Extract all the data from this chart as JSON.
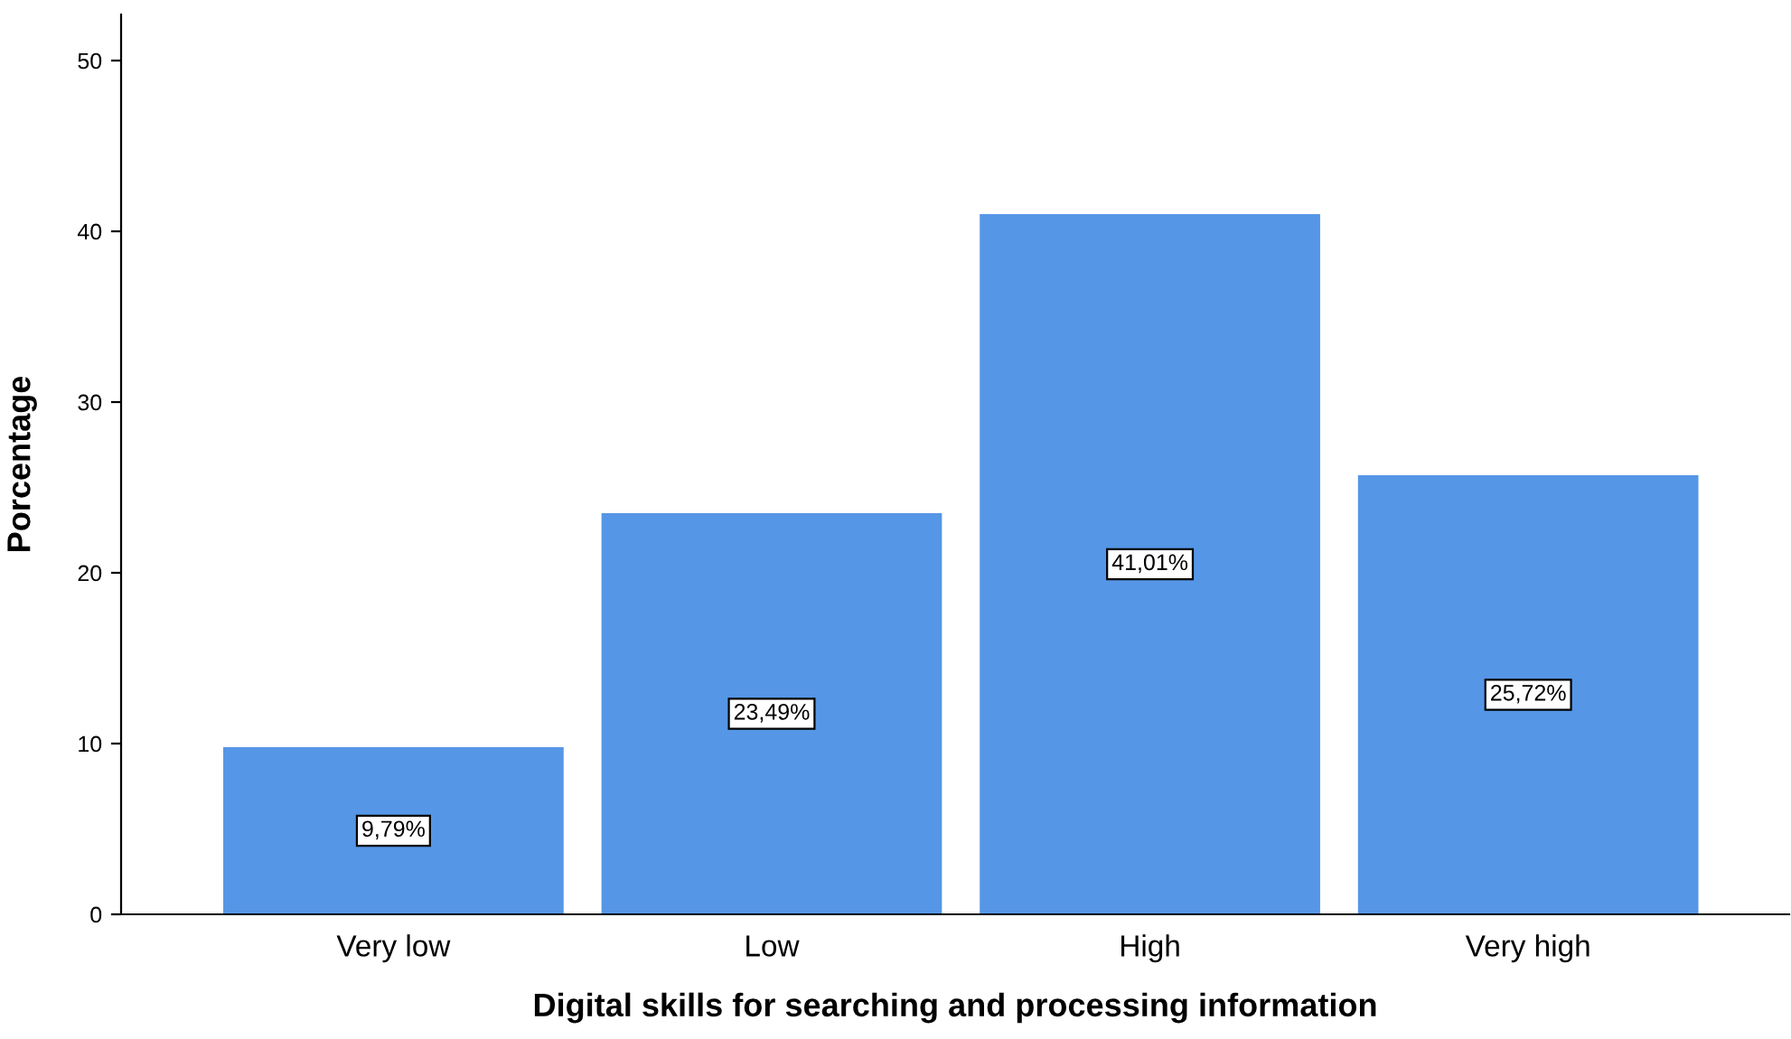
{
  "chart_data": {
    "type": "bar",
    "xlabel": "Digital skills for searching and processing information",
    "ylabel": "Porcentage",
    "categories": [
      "Very low",
      "Low",
      "High",
      "Very high"
    ],
    "values": [
      9.79,
      23.49,
      41.01,
      25.72
    ],
    "value_labels": [
      "9,79%",
      "23,49%",
      "41,01%",
      "25,72%"
    ],
    "color": "#5596e6",
    "ylim": [
      0,
      52.7
    ],
    "yticks": [
      0,
      10,
      20,
      30,
      40,
      50
    ],
    "grid": false,
    "legend": false
  }
}
